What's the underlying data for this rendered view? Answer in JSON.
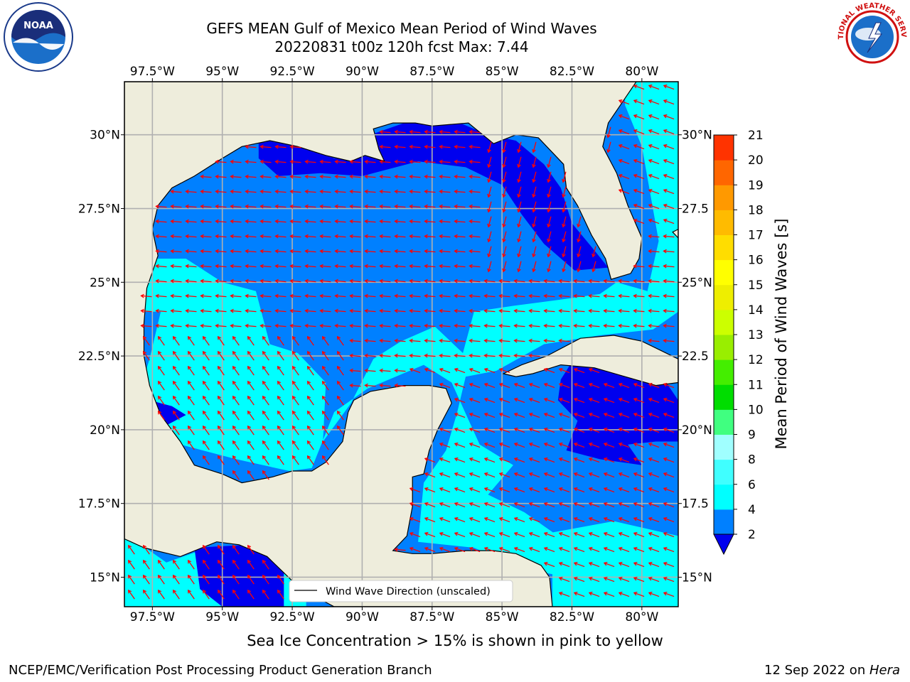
{
  "title": {
    "line1": "GEFS MEAN Gulf of Mexico Mean Period of Wind Waves",
    "line2": "20220831 t00z 120h fcst   Max: 7.44"
  },
  "map": {
    "lon_range": [
      -98.5,
      -78.7
    ],
    "lat_range": [
      14.0,
      31.8
    ],
    "lon_ticks": [
      "97.5°W",
      "95°W",
      "92.5°W",
      "90°W",
      "87.5°W",
      "85°W",
      "82.5°W",
      "80°W"
    ],
    "lat_ticks_left": [
      "30°N",
      "27.5°N",
      "25°N",
      "22.5°N",
      "20°N",
      "17.5°N",
      "15°N"
    ],
    "lat_ticks_right": [
      "30°N",
      "27.5",
      "25°N",
      "22.5",
      "20°N",
      "17.5",
      "15°N"
    ],
    "grid": true,
    "colors": {
      "land": "#eeeddc",
      "ocean_2_4": "#0080ff",
      "ocean_4_6": "#00ffff",
      "ocean_below_2": "#0000ee",
      "arrow": "#ff0000",
      "grid": "#b0b0b0"
    },
    "legend_label": "Wind Wave Direction (unscaled)",
    "legend_position": "bottom-center"
  },
  "colorbar": {
    "label": "Mean Period of Wind Waves [s]",
    "ticks": [
      "2",
      "4",
      "6",
      "8",
      "9",
      "10",
      "11",
      "12",
      "13",
      "14",
      "15",
      "16",
      "17",
      "18",
      "19",
      "20",
      "21"
    ],
    "colors": [
      "#0080ff",
      "#00ffff",
      "#40ffff",
      "#a0ffff",
      "#40ff80",
      "#00dd00",
      "#44ee00",
      "#99ee00",
      "#ccff00",
      "#eeee00",
      "#ffff00",
      "#ffdd00",
      "#ffbb00",
      "#ff9900",
      "#ff6600",
      "#ff3300"
    ],
    "extend_color": "#0000ee"
  },
  "chart_data": {
    "type": "heatmap",
    "title": "GEFS MEAN Gulf of Mexico Mean Period of Wind Waves",
    "subtitle": "20220831 t00z 120h fcst   Max: 7.44",
    "variable": "Mean Period of Wind Waves [s]",
    "max": 7.44,
    "levels": [
      2,
      4,
      6,
      8,
      9,
      10,
      11,
      12,
      13,
      14,
      15,
      16,
      17,
      18,
      19,
      20,
      21
    ],
    "xlim": [
      -98.5,
      -78.7
    ],
    "ylim": [
      14.0,
      31.8
    ]
  },
  "note": "Sea Ice Concentration > 15% is shown in pink to yellow",
  "footer": {
    "left": "NCEP/EMC/Verification Post Processing Product Generation Branch",
    "date": "12 Sep 2022 on ",
    "machine": "Hera"
  },
  "logos": {
    "noaa": "NOAA",
    "nws": "NATIONAL WEATHER SERVICE"
  }
}
